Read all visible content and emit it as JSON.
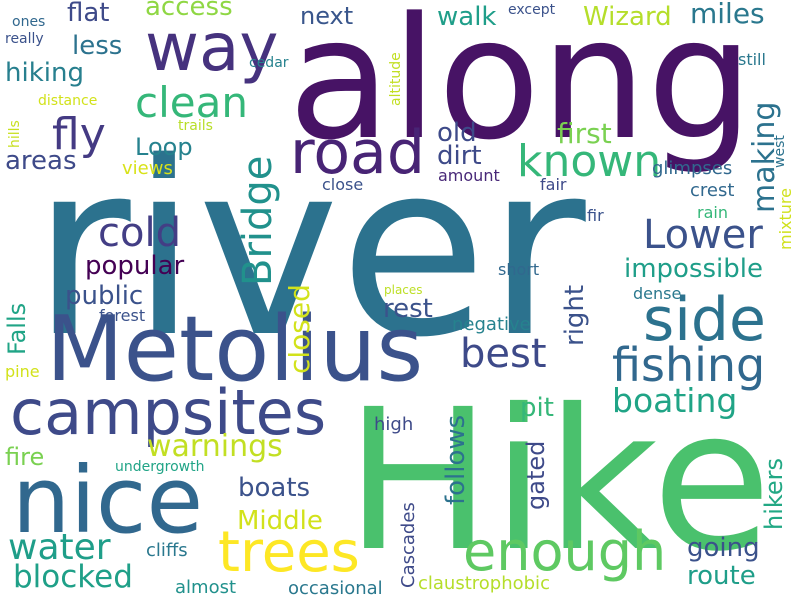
{
  "words": [
    {
      "text": "river",
      "color": "#2c728e"
    },
    {
      "text": "along",
      "color": "#471365"
    },
    {
      "text": "Hike",
      "color": "#4ac16d"
    },
    {
      "text": "Metolius",
      "color": "#3b528b"
    },
    {
      "text": "nice",
      "color": "#31688e"
    },
    {
      "text": "campsites",
      "color": "#3e4a89"
    },
    {
      "text": "way",
      "color": "#46327e"
    },
    {
      "text": "road",
      "color": "#482475"
    },
    {
      "text": "side",
      "color": "#2c728e"
    },
    {
      "text": "trees",
      "color": "#fde725"
    },
    {
      "text": "enough",
      "color": "#5ec962"
    },
    {
      "text": "fishing",
      "color": "#31688e"
    },
    {
      "text": "best",
      "color": "#3e4a89"
    },
    {
      "text": "clean",
      "color": "#35b779"
    },
    {
      "text": "known",
      "color": "#35b779"
    },
    {
      "text": "Lower",
      "color": "#3b528b"
    },
    {
      "text": "fly",
      "color": "#443a83"
    },
    {
      "text": "cold",
      "color": "#433e85"
    },
    {
      "text": "Bridge",
      "color": "#21918c"
    },
    {
      "text": "water",
      "color": "#1f9e89"
    },
    {
      "text": "boating",
      "color": "#20a486"
    },
    {
      "text": "warnings",
      "color": "#c2df23"
    },
    {
      "text": "blocked",
      "color": "#1fa088"
    },
    {
      "text": "impossible",
      "color": "#1f9e89"
    },
    {
      "text": "popular",
      "color": "#440154"
    },
    {
      "text": "public",
      "color": "#3b528b"
    },
    {
      "text": "making",
      "color": "#2c728e"
    },
    {
      "text": "first",
      "color": "#7ad151"
    },
    {
      "text": "hiking",
      "color": "#277f8e"
    },
    {
      "text": "walk",
      "color": "#1f9e89"
    },
    {
      "text": "Wizard",
      "color": "#b5de2b"
    },
    {
      "text": "miles",
      "color": "#2a788e"
    },
    {
      "text": "flat",
      "color": "#3e4a89"
    },
    {
      "text": "access",
      "color": "#8fd744"
    },
    {
      "text": "next",
      "color": "#39568c"
    },
    {
      "text": "less",
      "color": "#2c728e"
    },
    {
      "text": "areas",
      "color": "#3e4a89"
    },
    {
      "text": "Loop",
      "color": "#26828e"
    },
    {
      "text": "old",
      "color": "#3e4a89"
    },
    {
      "text": "dirt",
      "color": "#3e4a89"
    },
    {
      "text": "closed",
      "color": "#d2e21b"
    },
    {
      "text": "rest",
      "color": "#3b528b"
    },
    {
      "text": "right",
      "color": "#3b528b"
    },
    {
      "text": "follows",
      "color": "#2c728e"
    },
    {
      "text": "pit",
      "color": "#35b779"
    },
    {
      "text": "gated",
      "color": "#3e4a89"
    },
    {
      "text": "Middle",
      "color": "#d2e21b"
    },
    {
      "text": "boats",
      "color": "#3b528b"
    },
    {
      "text": "fire",
      "color": "#7ad151"
    },
    {
      "text": "going",
      "color": "#3b528b"
    },
    {
      "text": "route",
      "color": "#1f9e89"
    },
    {
      "text": "hikers",
      "color": "#22a884"
    },
    {
      "text": "Falls",
      "color": "#20a486"
    },
    {
      "text": "views",
      "color": "#d8e219"
    },
    {
      "text": "close",
      "color": "#3b528b"
    },
    {
      "text": "amount",
      "color": "#482878"
    },
    {
      "text": "fair",
      "color": "#3e4a89"
    },
    {
      "text": "fir",
      "color": "#3b528b"
    },
    {
      "text": "rain",
      "color": "#35b779"
    },
    {
      "text": "crest",
      "color": "#31688e"
    },
    {
      "text": "glimpses",
      "color": "#31688e"
    },
    {
      "text": "west",
      "color": "#2c728e"
    },
    {
      "text": "mixture",
      "color": "#d0e11c"
    },
    {
      "text": "short",
      "color": "#31688e"
    },
    {
      "text": "dense",
      "color": "#2a788e"
    },
    {
      "text": "negative",
      "color": "#26828e"
    },
    {
      "text": "places",
      "color": "#bddf26"
    },
    {
      "text": "forest",
      "color": "#3b528b"
    },
    {
      "text": "high",
      "color": "#3e4a89"
    },
    {
      "text": "undergrowth",
      "color": "#20a486"
    },
    {
      "text": "Cascades",
      "color": "#3e4a89"
    },
    {
      "text": "cliffs",
      "color": "#2a788e"
    },
    {
      "text": "almost",
      "color": "#21918c"
    },
    {
      "text": "occasional",
      "color": "#2a788e"
    },
    {
      "text": "claustrophobic",
      "color": "#b5de2b"
    },
    {
      "text": "pine",
      "color": "#d2e21b"
    },
    {
      "text": "ones",
      "color": "#31688e"
    },
    {
      "text": "really",
      "color": "#3b528b"
    },
    {
      "text": "distance",
      "color": "#d2e21b"
    },
    {
      "text": "hills",
      "color": "#c8e020"
    },
    {
      "text": "trails",
      "color": "#b8de29"
    },
    {
      "text": "cedar",
      "color": "#26828e"
    },
    {
      "text": "altitude",
      "color": "#c2df23"
    },
    {
      "text": "except",
      "color": "#3b528b"
    },
    {
      "text": "still",
      "color": "#2a788e"
    }
  ]
}
